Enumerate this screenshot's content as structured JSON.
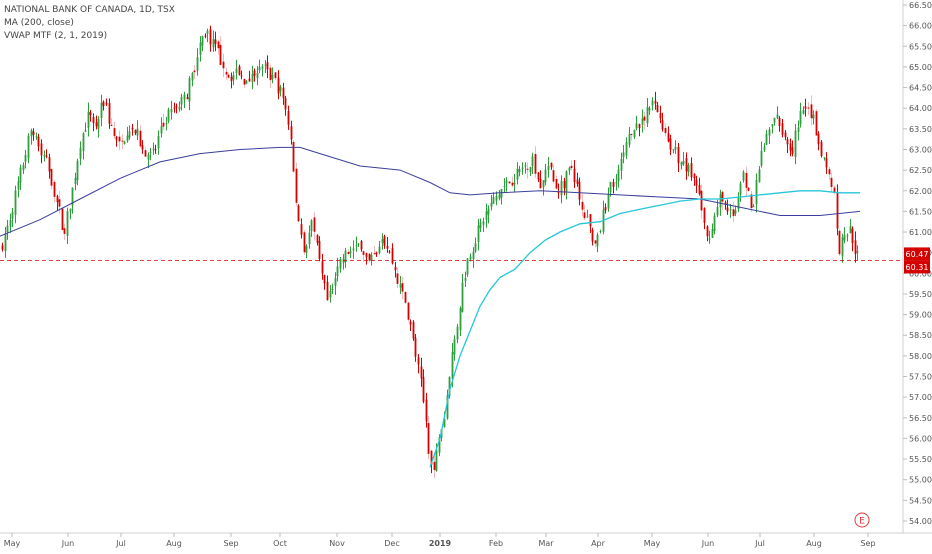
{
  "chart_data": {
    "type": "candlestick",
    "title": "NATIONAL BANK OF CANADA, 1D, TSX",
    "indicators": [
      {
        "name": "MA (200, close)",
        "color": "#3a3f9a"
      },
      {
        "name": "VWAP MTF (2, 1, 2019)",
        "color": "#26c6da"
      }
    ],
    "colors": {
      "up": "#2e9e3e",
      "down": "#d50000",
      "wick_light": "#f3b8b8"
    },
    "ylim": [
      53.8,
      66.6
    ],
    "yticks": [
      "54.00",
      "54.50",
      "55.00",
      "55.50",
      "56.00",
      "56.50",
      "57.00",
      "57.50",
      "58.00",
      "58.50",
      "59.00",
      "59.50",
      "60.00",
      "60.50",
      "61.00",
      "61.50",
      "62.00",
      "62.50",
      "63.00",
      "63.50",
      "64.00",
      "64.50",
      "65.00",
      "65.50",
      "66.00",
      "66.50"
    ],
    "x_axis_labels": [
      "May",
      "Jun",
      "Jul",
      "Aug",
      "Sep",
      "Oct",
      "Nov",
      "Dec",
      "2019",
      "Feb",
      "Mar",
      "Apr",
      "May",
      "Jun",
      "Jul",
      "Aug",
      "Sep"
    ],
    "last_price": {
      "label": "60.47",
      "value": 60.47,
      "color": "#d50000"
    },
    "reference_price": {
      "label": "60.31",
      "value": 60.31,
      "color": "#d50000"
    },
    "close_series": [
      [
        0,
        60.6
      ],
      [
        8,
        61.2
      ],
      [
        20,
        62.4
      ],
      [
        32,
        63.6
      ],
      [
        40,
        63.0
      ],
      [
        48,
        62.6
      ],
      [
        56,
        61.8
      ],
      [
        64,
        61.0
      ],
      [
        72,
        62.0
      ],
      [
        80,
        63.2
      ],
      [
        88,
        63.8
      ],
      [
        96,
        63.6
      ],
      [
        104,
        64.2
      ],
      [
        112,
        63.4
      ],
      [
        120,
        63.0
      ],
      [
        128,
        63.6
      ],
      [
        136,
        63.4
      ],
      [
        144,
        63.0
      ],
      [
        152,
        62.8
      ],
      [
        160,
        63.4
      ],
      [
        168,
        63.8
      ],
      [
        176,
        64.0
      ],
      [
        184,
        64.2
      ],
      [
        192,
        64.8
      ],
      [
        200,
        65.6
      ],
      [
        206,
        65.9
      ],
      [
        212,
        65.6
      ],
      [
        220,
        65.2
      ],
      [
        228,
        64.8
      ],
      [
        236,
        64.8
      ],
      [
        244,
        64.7
      ],
      [
        252,
        64.9
      ],
      [
        260,
        65.1
      ],
      [
        268,
        64.8
      ],
      [
        276,
        64.6
      ],
      [
        284,
        64.2
      ],
      [
        290,
        63.4
      ],
      [
        296,
        61.6
      ],
      [
        304,
        60.6
      ],
      [
        312,
        61.2
      ],
      [
        320,
        60.1
      ],
      [
        328,
        59.2
      ],
      [
        336,
        60.2
      ],
      [
        344,
        60.4
      ],
      [
        352,
        60.6
      ],
      [
        360,
        60.8
      ],
      [
        368,
        60.2
      ],
      [
        376,
        60.4
      ],
      [
        384,
        60.8
      ],
      [
        392,
        60.3
      ],
      [
        400,
        59.6
      ],
      [
        408,
        59.0
      ],
      [
        414,
        58.2
      ],
      [
        420,
        57.4
      ],
      [
        426,
        56.4
      ],
      [
        430,
        55.4
      ],
      [
        434,
        55.2
      ],
      [
        438,
        56.0
      ],
      [
        444,
        56.5
      ],
      [
        450,
        57.8
      ],
      [
        456,
        58.6
      ],
      [
        462,
        59.7
      ],
      [
        468,
        60.4
      ],
      [
        476,
        60.9
      ],
      [
        484,
        61.4
      ],
      [
        492,
        61.7
      ],
      [
        500,
        62.0
      ],
      [
        508,
        62.2
      ],
      [
        516,
        62.4
      ],
      [
        524,
        62.6
      ],
      [
        532,
        62.8
      ],
      [
        540,
        62.2
      ],
      [
        548,
        62.6
      ],
      [
        556,
        62.0
      ],
      [
        564,
        62.2
      ],
      [
        572,
        62.6
      ],
      [
        580,
        61.6
      ],
      [
        588,
        61.2
      ],
      [
        596,
        60.6
      ],
      [
        604,
        61.6
      ],
      [
        612,
        62.2
      ],
      [
        620,
        62.6
      ],
      [
        628,
        63.2
      ],
      [
        636,
        63.6
      ],
      [
        644,
        63.8
      ],
      [
        652,
        64.1
      ],
      [
        660,
        63.8
      ],
      [
        668,
        63.2
      ],
      [
        676,
        62.9
      ],
      [
        684,
        62.6
      ],
      [
        692,
        62.4
      ],
      [
        700,
        61.8
      ],
      [
        706,
        60.8
      ],
      [
        712,
        61.2
      ],
      [
        720,
        61.8
      ],
      [
        728,
        61.4
      ],
      [
        736,
        61.6
      ],
      [
        744,
        62.4
      ],
      [
        752,
        61.4
      ],
      [
        760,
        62.8
      ],
      [
        768,
        63.4
      ],
      [
        776,
        63.8
      ],
      [
        784,
        63.4
      ],
      [
        792,
        63.0
      ],
      [
        800,
        63.8
      ],
      [
        806,
        64.2
      ],
      [
        812,
        63.8
      ],
      [
        818,
        63.2
      ],
      [
        824,
        62.8
      ],
      [
        830,
        62.4
      ],
      [
        834,
        61.9
      ],
      [
        838,
        60.5
      ],
      [
        844,
        60.9
      ],
      [
        850,
        61.1
      ],
      [
        856,
        60.47
      ]
    ],
    "ma200": [
      [
        0,
        60.9
      ],
      [
        40,
        61.3
      ],
      [
        80,
        61.8
      ],
      [
        120,
        62.3
      ],
      [
        160,
        62.7
      ],
      [
        200,
        62.9
      ],
      [
        240,
        63.0
      ],
      [
        280,
        63.05
      ],
      [
        300,
        63.05
      ],
      [
        320,
        62.9
      ],
      [
        360,
        62.6
      ],
      [
        400,
        62.5
      ],
      [
        430,
        62.2
      ],
      [
        450,
        61.95
      ],
      [
        470,
        61.9
      ],
      [
        500,
        61.95
      ],
      [
        540,
        62.0
      ],
      [
        580,
        61.95
      ],
      [
        620,
        61.9
      ],
      [
        660,
        61.85
      ],
      [
        700,
        61.8
      ],
      [
        740,
        61.6
      ],
      [
        780,
        61.4
      ],
      [
        820,
        61.4
      ],
      [
        860,
        61.5
      ]
    ],
    "vwap": [
      [
        430,
        55.3
      ],
      [
        440,
        56.0
      ],
      [
        450,
        57.2
      ],
      [
        460,
        58.0
      ],
      [
        470,
        58.6
      ],
      [
        480,
        59.2
      ],
      [
        490,
        59.6
      ],
      [
        500,
        59.9
      ],
      [
        515,
        60.1
      ],
      [
        530,
        60.5
      ],
      [
        545,
        60.8
      ],
      [
        560,
        61.0
      ],
      [
        580,
        61.2
      ],
      [
        600,
        61.25
      ],
      [
        620,
        61.45
      ],
      [
        640,
        61.55
      ],
      [
        660,
        61.65
      ],
      [
        680,
        61.75
      ],
      [
        700,
        61.8
      ],
      [
        720,
        61.8
      ],
      [
        740,
        61.85
      ],
      [
        760,
        61.9
      ],
      [
        780,
        61.95
      ],
      [
        800,
        62.0
      ],
      [
        820,
        62.0
      ],
      [
        840,
        61.95
      ],
      [
        860,
        61.95
      ]
    ]
  }
}
